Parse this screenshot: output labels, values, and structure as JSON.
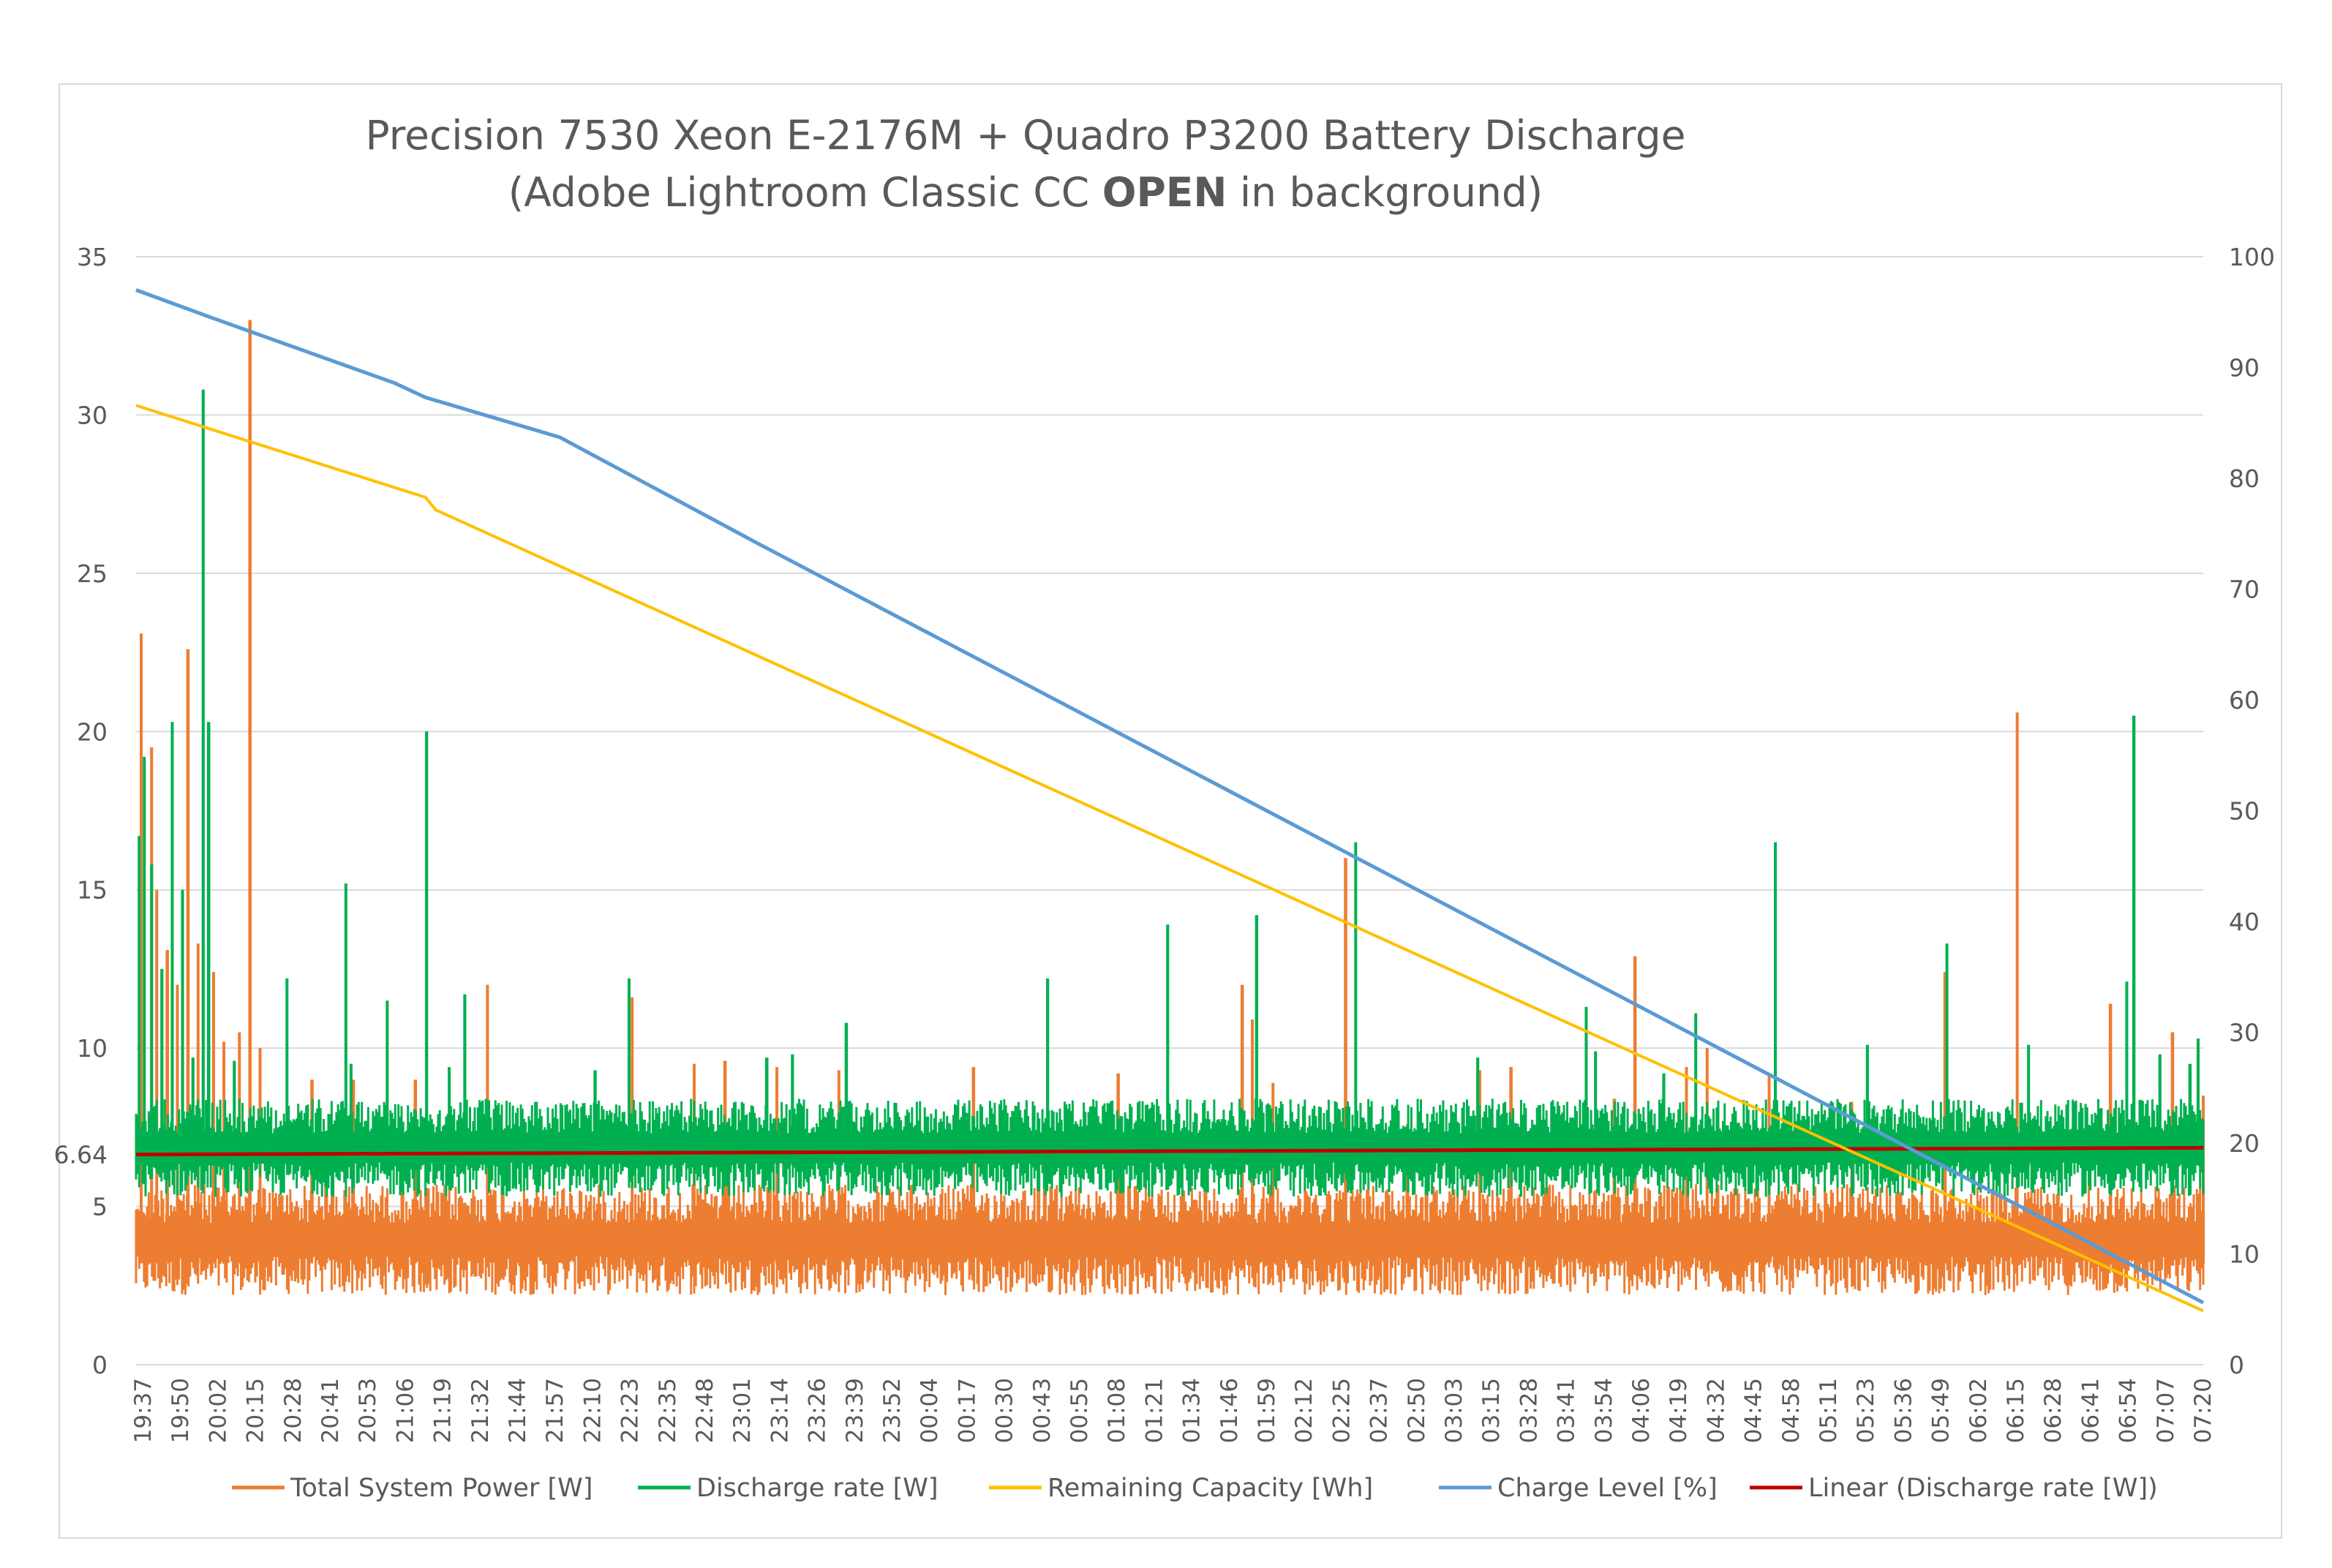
{
  "chart_data": {
    "type": "line",
    "title_line1": "Precision 7530 Xeon E-2176M + Quadro P3200 Battery Discharge",
    "title_line2_pre": "(Adobe Lightroom Classic CC ",
    "title_line2_bold": "OPEN",
    "title_line2_post": " in background)",
    "y_left": {
      "min": 0,
      "max": 35,
      "ticks": [
        "0",
        "5",
        "10",
        "15",
        "20",
        "25",
        "30",
        "35"
      ]
    },
    "y_left_extra_label": {
      "value": 6.64,
      "label": "6.64"
    },
    "y_right": {
      "min": 0,
      "max": 100,
      "ticks": [
        "0",
        "10",
        "20",
        "30",
        "40",
        "50",
        "60",
        "70",
        "80",
        "90",
        "100"
      ]
    },
    "x_labels": [
      "19:37",
      "19:50",
      "20:02",
      "20:15",
      "20:28",
      "20:41",
      "20:53",
      "21:06",
      "21:19",
      "21:32",
      "21:44",
      "21:57",
      "22:10",
      "22:23",
      "22:35",
      "22:48",
      "23:01",
      "23:14",
      "23:26",
      "23:39",
      "23:52",
      "00:04",
      "00:17",
      "00:30",
      "00:43",
      "00:55",
      "01:08",
      "01:21",
      "01:34",
      "01:46",
      "01:59",
      "02:12",
      "02:25",
      "02:37",
      "02:50",
      "03:03",
      "03:15",
      "03:28",
      "03:41",
      "03:54",
      "04:06",
      "04:19",
      "04:32",
      "04:45",
      "04:58",
      "05:11",
      "05:23",
      "05:36",
      "05:49",
      "06:02",
      "06:15",
      "06:28",
      "06:41",
      "06:54",
      "07:07",
      "07:20"
    ],
    "legend": [
      {
        "name": "Total System Power [W]",
        "color": "#ED7D31"
      },
      {
        "name": "Discharge rate [W]",
        "color": "#00B050"
      },
      {
        "name": "Remaining Capacity [Wh]",
        "color": "#FFC000"
      },
      {
        "name": "Charge Level [%]",
        "color": "#5B9BD5"
      },
      {
        "name": "Linear (Discharge rate [W])",
        "color": "#C00000"
      }
    ],
    "series": [
      {
        "name": "Charge Level [%]",
        "axis": "right",
        "points": [
          [
            0,
            97
          ],
          [
            7,
            94.6
          ],
          [
            25,
            88.6
          ],
          [
            28,
            87.3
          ],
          [
            41,
            83.7
          ],
          [
            60,
            74.2
          ],
          [
            100,
            54.6
          ],
          [
            200,
            5.6
          ]
        ]
      },
      {
        "name": "Remaining Capacity [Wh]",
        "axis": "left",
        "points": [
          [
            0,
            30.3
          ],
          [
            28,
            27.4
          ],
          [
            29,
            27.0
          ],
          [
            200,
            1.7
          ]
        ]
      },
      {
        "name": "Linear (Discharge rate [W])",
        "axis": "left",
        "points": [
          [
            0,
            6.64
          ],
          [
            200,
            6.85
          ]
        ]
      },
      {
        "name": "Total System Power [W]",
        "axis": "left",
        "band": [
          2.2,
          5.7
        ],
        "spikes": [
          [
            0.5,
            23.1
          ],
          [
            1.5,
            19.5
          ],
          [
            2,
            15
          ],
          [
            3,
            13.1
          ],
          [
            4,
            12
          ],
          [
            5,
            22.6
          ],
          [
            6,
            13.3
          ],
          [
            7.5,
            12.4
          ],
          [
            8.5,
            10.2
          ],
          [
            10,
            10.5
          ],
          [
            11,
            33
          ],
          [
            12,
            10
          ],
          [
            17,
            9
          ],
          [
            21,
            9
          ],
          [
            27,
            9
          ],
          [
            34,
            12
          ],
          [
            48,
            11.6
          ],
          [
            54,
            9.5
          ],
          [
            57,
            9.6
          ],
          [
            62,
            9.4
          ],
          [
            68,
            9.3
          ],
          [
            81,
            9.4
          ],
          [
            95,
            9.2
          ],
          [
            107,
            12
          ],
          [
            108,
            10.9
          ],
          [
            110,
            8.9
          ],
          [
            117,
            16
          ],
          [
            123,
            7.6
          ],
          [
            130,
            9.3
          ],
          [
            133,
            9.4
          ],
          [
            143,
            8.4
          ],
          [
            145,
            12.9
          ],
          [
            150,
            9.4
          ],
          [
            152,
            10
          ],
          [
            158,
            9.2
          ],
          [
            166,
            8.3
          ],
          [
            175,
            12.4
          ],
          [
            182,
            20.6
          ],
          [
            191,
            11.4
          ],
          [
            197,
            10.5
          ],
          [
            200,
            8.5
          ]
        ]
      },
      {
        "name": "Discharge rate [W]",
        "axis": "left",
        "band": [
          5.3,
          8.4
        ],
        "spikes": [
          [
            0.3,
            16.7
          ],
          [
            0.8,
            19.2
          ],
          [
            1.5,
            15.8
          ],
          [
            2.5,
            12.5
          ],
          [
            3.5,
            20.3
          ],
          [
            4.5,
            15
          ],
          [
            5.5,
            9.7
          ],
          [
            6.5,
            30.8
          ],
          [
            7,
            20.3
          ],
          [
            9.5,
            9.6
          ],
          [
            14.6,
            12.2
          ],
          [
            20.3,
            15.2
          ],
          [
            20.8,
            9.5
          ],
          [
            24.3,
            11.5
          ],
          [
            28.1,
            20
          ],
          [
            30.3,
            9.4
          ],
          [
            31.8,
            11.7
          ],
          [
            44.4,
            9.3
          ],
          [
            47.7,
            12.2
          ],
          [
            61,
            9.7
          ],
          [
            63.5,
            9.8
          ],
          [
            68.7,
            10.8
          ],
          [
            88.2,
            12.2
          ],
          [
            99.8,
            13.9
          ],
          [
            108.4,
            14.2
          ],
          [
            118,
            16.5
          ],
          [
            129.8,
            9.7
          ],
          [
            140.3,
            11.3
          ],
          [
            141.2,
            9.9
          ],
          [
            147.8,
            9.2
          ],
          [
            150.9,
            11.1
          ],
          [
            158.6,
            16.5
          ],
          [
            167.5,
            10.1
          ],
          [
            175.2,
            13.3
          ],
          [
            183.1,
            10.1
          ],
          [
            192.6,
            12.1
          ],
          [
            193.3,
            20.5
          ],
          [
            195.8,
            9.8
          ],
          [
            198.7,
            9.5
          ],
          [
            199.5,
            10.3
          ]
        ]
      }
    ]
  }
}
